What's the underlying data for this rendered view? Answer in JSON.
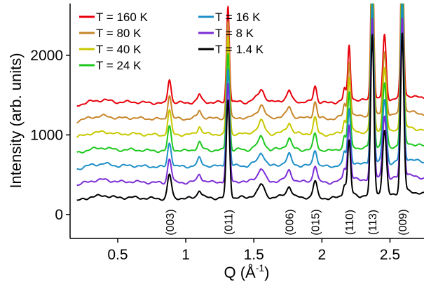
{
  "chart_data": {
    "type": "line",
    "xlabel": "Q (Å",
    "xlabel_sup": "-1",
    "xlabel_end": ")",
    "ylabel": "Intensity (arb. units)",
    "xlim": [
      0.15,
      2.75
    ],
    "ylim": [
      -300,
      2650
    ],
    "xticks": [
      0.5,
      1.0,
      1.5,
      2.0,
      2.5
    ],
    "xtick_labels": [
      "0.5",
      "1",
      "1.5",
      "2",
      "2.5"
    ],
    "yticks": [
      0,
      1000,
      2000
    ],
    "ytick_labels": [
      "0",
      "1000",
      "2000"
    ],
    "legend_placement": "top-left, two columns",
    "grid": false,
    "series": [
      {
        "name": "T = 160 K",
        "color": "#e8000b",
        "offset": 1400
      },
      {
        "name": "T = 80 K",
        "color": "#c8862a",
        "offset": 1200
      },
      {
        "name": "T = 40 K",
        "color": "#c8c800",
        "offset": 1000
      },
      {
        "name": "T = 24 K",
        "color": "#1ec81e",
        "offset": 800
      },
      {
        "name": "T = 16 K",
        "color": "#1e8fc8",
        "offset": 600
      },
      {
        "name": "T = 8 K",
        "color": "#7b2dd6",
        "offset": 400
      },
      {
        "name": "T = 1.4 K",
        "color": "#000000",
        "offset": 200
      }
    ],
    "baseline_profile": {
      "q": [
        0.2,
        0.3,
        0.4,
        0.5,
        0.6,
        0.7,
        0.8,
        0.86,
        0.9,
        0.95,
        1.0,
        1.05,
        1.1,
        1.15,
        1.2,
        1.25,
        1.35,
        1.4,
        1.45,
        1.5,
        1.55,
        1.58,
        1.62,
        1.7,
        1.76,
        1.8,
        1.85,
        1.92,
        2.0,
        2.05,
        2.1,
        2.15,
        2.18,
        2.24,
        2.28,
        2.32,
        2.42,
        2.5,
        2.54,
        2.62,
        2.68,
        2.75
      ],
      "y": [
        -30,
        20,
        40,
        10,
        15,
        5,
        0,
        -5,
        10,
        5,
        0,
        10,
        50,
        15,
        5,
        10,
        10,
        20,
        5,
        50,
        130,
        70,
        10,
        30,
        90,
        30,
        10,
        20,
        10,
        0,
        10,
        40,
        90,
        50,
        30,
        40,
        60,
        40,
        60,
        100,
        80,
        60
      ]
    },
    "peaks": [
      {
        "q": 0.88,
        "height": 300,
        "width": 0.012
      },
      {
        "q": 1.1,
        "height": 60,
        "width": 0.01
      },
      {
        "q": 1.31,
        "height": 1220,
        "width": 0.01
      },
      {
        "q": 1.56,
        "height": 60,
        "width": 0.015
      },
      {
        "q": 1.76,
        "height": 70,
        "width": 0.012
      },
      {
        "q": 1.95,
        "height": 200,
        "width": 0.012
      },
      {
        "q": 2.165,
        "height": 120,
        "width": 0.008
      },
      {
        "q": 2.2,
        "height": 650,
        "width": 0.009
      },
      {
        "q": 2.37,
        "height": 2000,
        "width": 0.01
      },
      {
        "q": 2.46,
        "height": 800,
        "width": 0.012
      },
      {
        "q": 2.59,
        "height": 2000,
        "width": 0.01
      }
    ],
    "peak_labels": [
      {
        "text": "(003)",
        "q": 0.88
      },
      {
        "text": "(011)",
        "q": 1.31
      },
      {
        "text": "(006)",
        "q": 1.76
      },
      {
        "text": "(015)",
        "q": 1.95
      },
      {
        "text": "(110)",
        "q": 2.2
      },
      {
        "text": "(113)",
        "q": 2.37
      },
      {
        "text": "(009)",
        "q": 2.59
      }
    ]
  }
}
